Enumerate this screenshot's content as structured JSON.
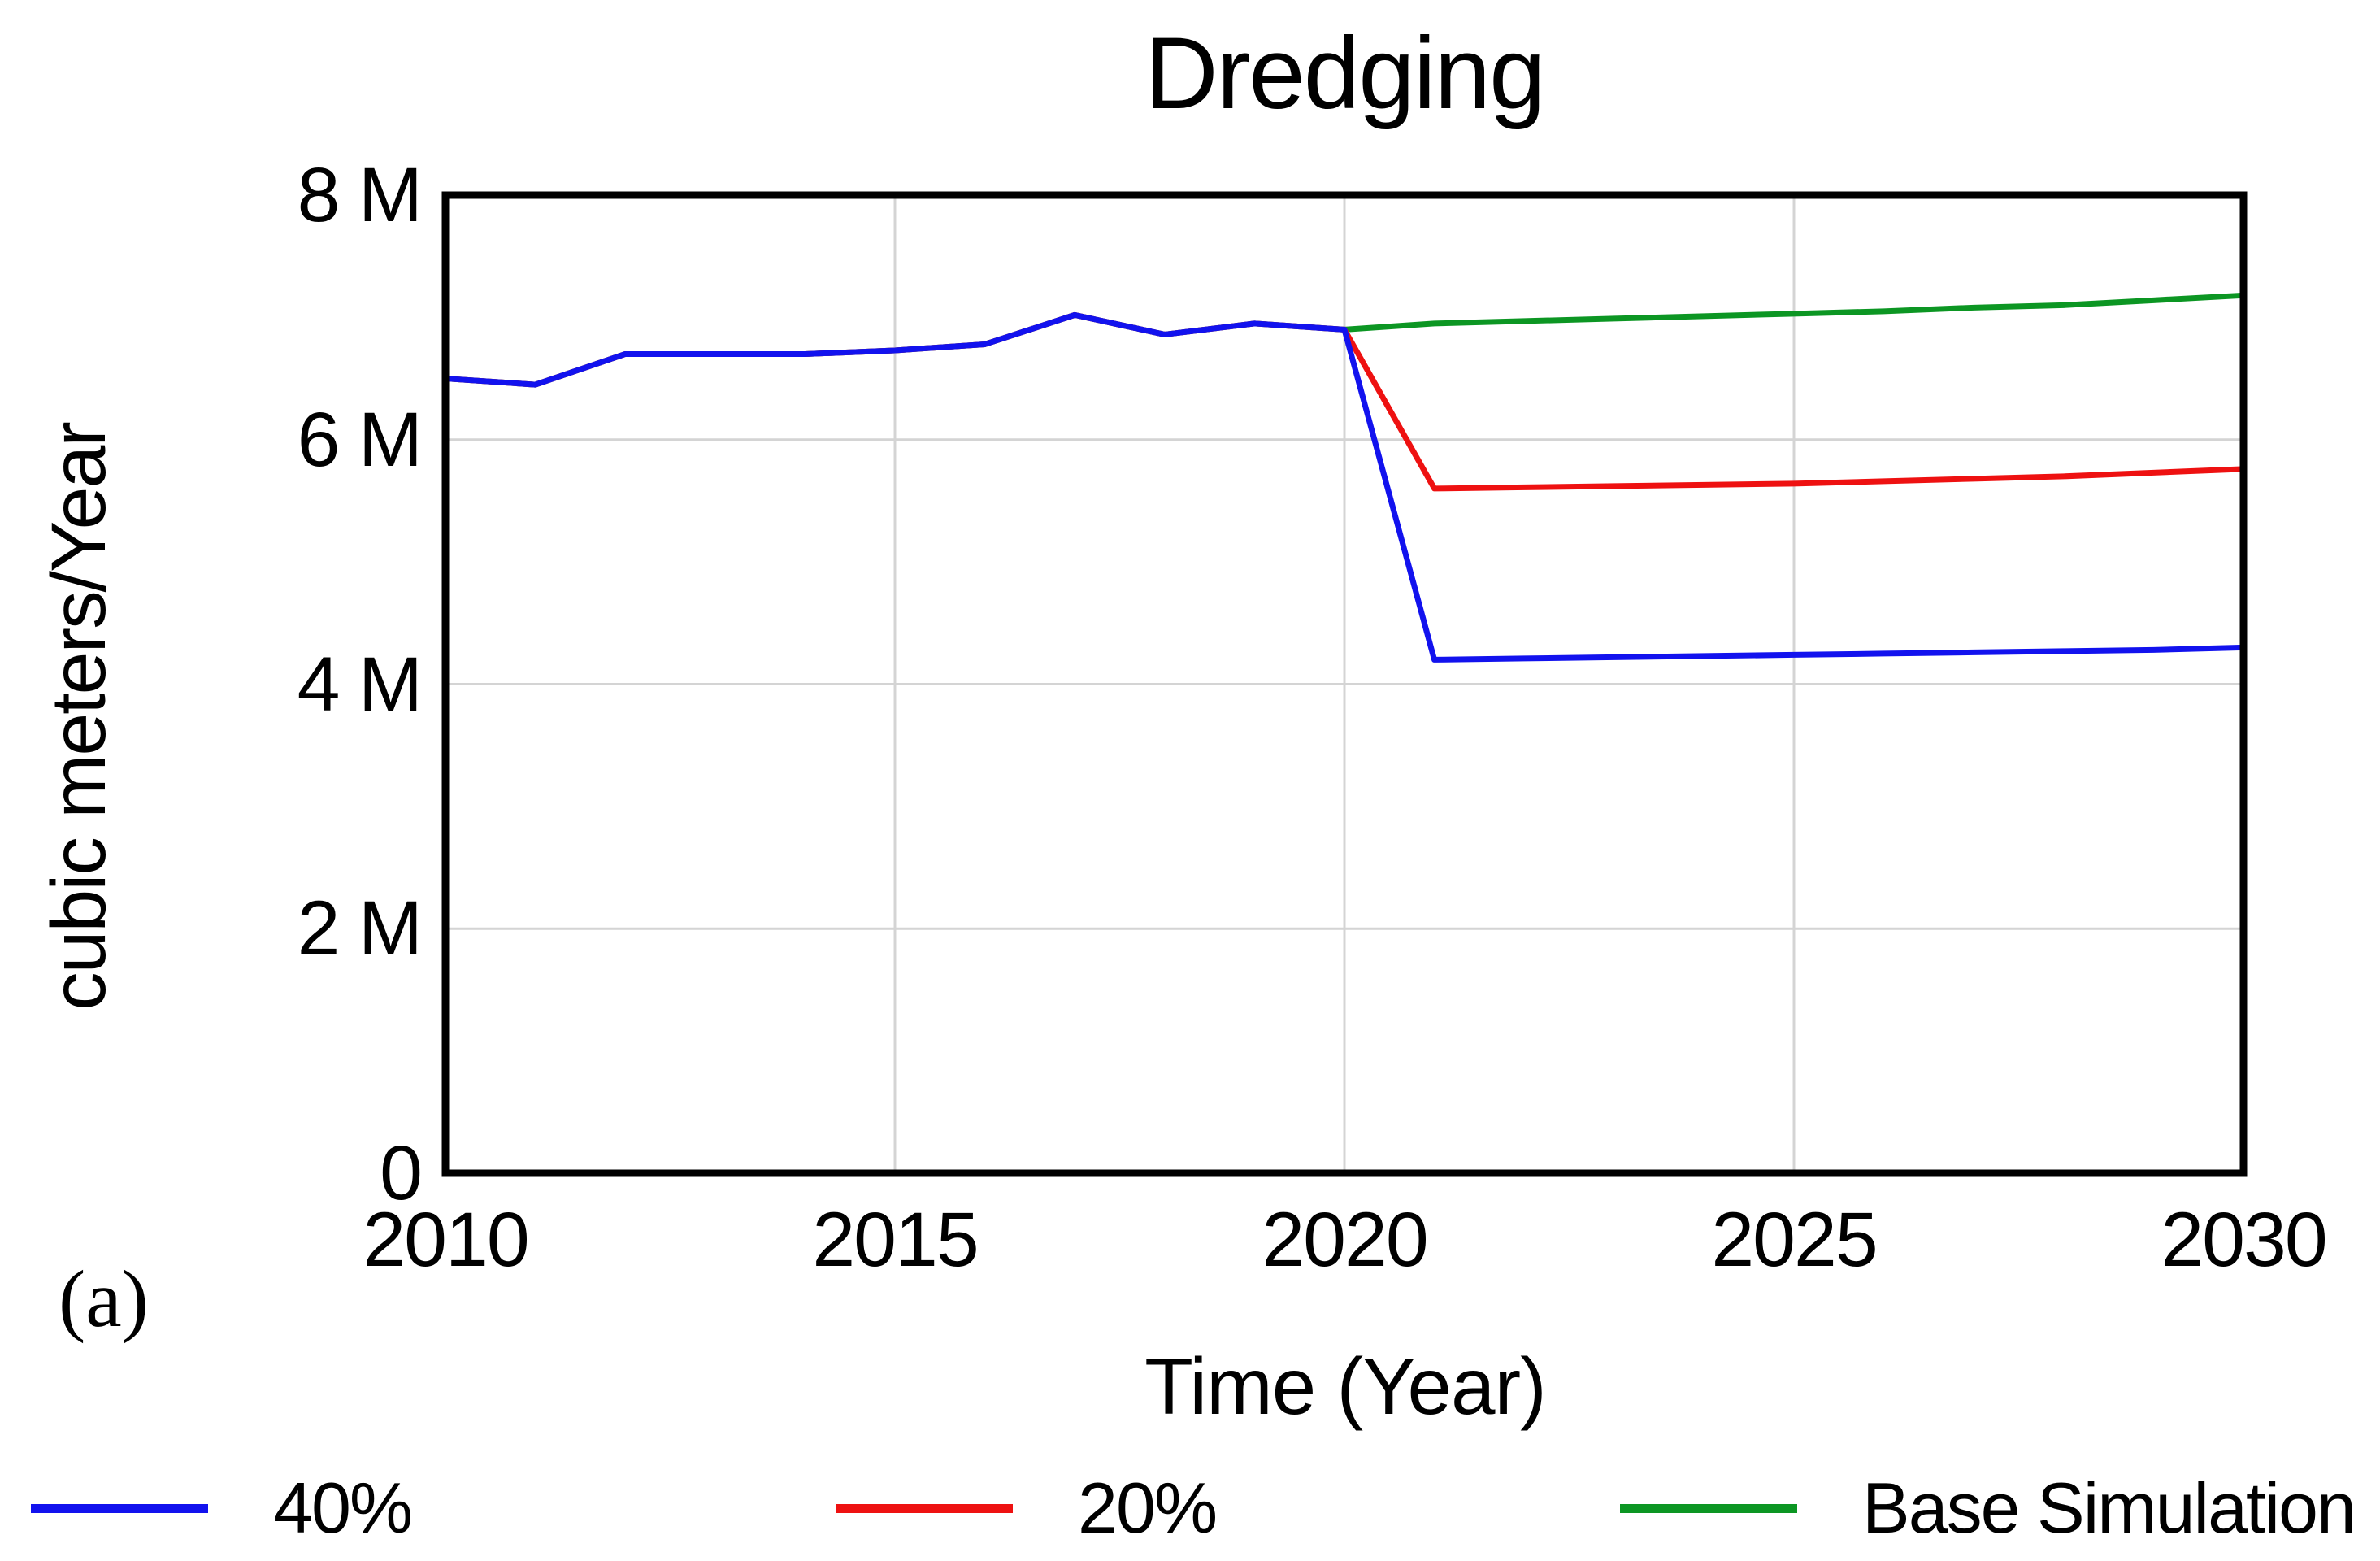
{
  "figure": {
    "panel_label": "(a)"
  },
  "chart_data": {
    "type": "line",
    "title": "Dredging",
    "xlabel": "Time (Year)",
    "ylabel": "cubic meters/Year",
    "y_unit": "cubic meters/Year",
    "x": [
      2010,
      2011,
      2012,
      2013,
      2014,
      2015,
      2016,
      2017,
      2018,
      2019,
      2020,
      2021,
      2022,
      2023,
      2024,
      2025,
      2026,
      2027,
      2028,
      2029,
      2030
    ],
    "xlim": [
      2010,
      2030
    ],
    "ylim_M": [
      0,
      8
    ],
    "xticks": [
      2010,
      2015,
      2020,
      2025,
      2030
    ],
    "yticks": [
      {
        "value_M": 0,
        "label": "0"
      },
      {
        "value_M": 2,
        "label": "2 M"
      },
      {
        "value_M": 4,
        "label": "4 M"
      },
      {
        "value_M": 6,
        "label": "6 M"
      },
      {
        "value_M": 8,
        "label": "8 M"
      }
    ],
    "grid": true,
    "grid_x": [
      2015,
      2020,
      2025
    ],
    "grid_y_M": [
      2,
      4,
      6
    ],
    "grid_color": "#d4d4d4",
    "axis_color": "#000000",
    "legend_position": "bottom",
    "series": [
      {
        "name": "40%",
        "color": "#1212ee",
        "values_M": [
          6.5,
          6.45,
          6.7,
          6.7,
          6.7,
          6.73,
          6.78,
          7.02,
          6.86,
          6.95,
          6.9,
          4.2,
          4.21,
          4.22,
          4.23,
          4.24,
          4.25,
          4.26,
          4.27,
          4.28,
          4.3
        ]
      },
      {
        "name": "20%",
        "color": "#ee1111",
        "values_M": [
          6.5,
          6.45,
          6.7,
          6.7,
          6.7,
          6.73,
          6.78,
          7.02,
          6.86,
          6.95,
          6.9,
          5.6,
          5.61,
          5.62,
          5.63,
          5.64,
          5.66,
          5.68,
          5.7,
          5.73,
          5.76
        ]
      },
      {
        "name": "Base Simulation",
        "color": "#0c9623",
        "values_M": [
          6.5,
          6.45,
          6.7,
          6.7,
          6.7,
          6.73,
          6.78,
          7.02,
          6.86,
          6.95,
          6.9,
          6.95,
          6.97,
          6.99,
          7.01,
          7.03,
          7.05,
          7.08,
          7.1,
          7.14,
          7.18
        ]
      }
    ]
  }
}
